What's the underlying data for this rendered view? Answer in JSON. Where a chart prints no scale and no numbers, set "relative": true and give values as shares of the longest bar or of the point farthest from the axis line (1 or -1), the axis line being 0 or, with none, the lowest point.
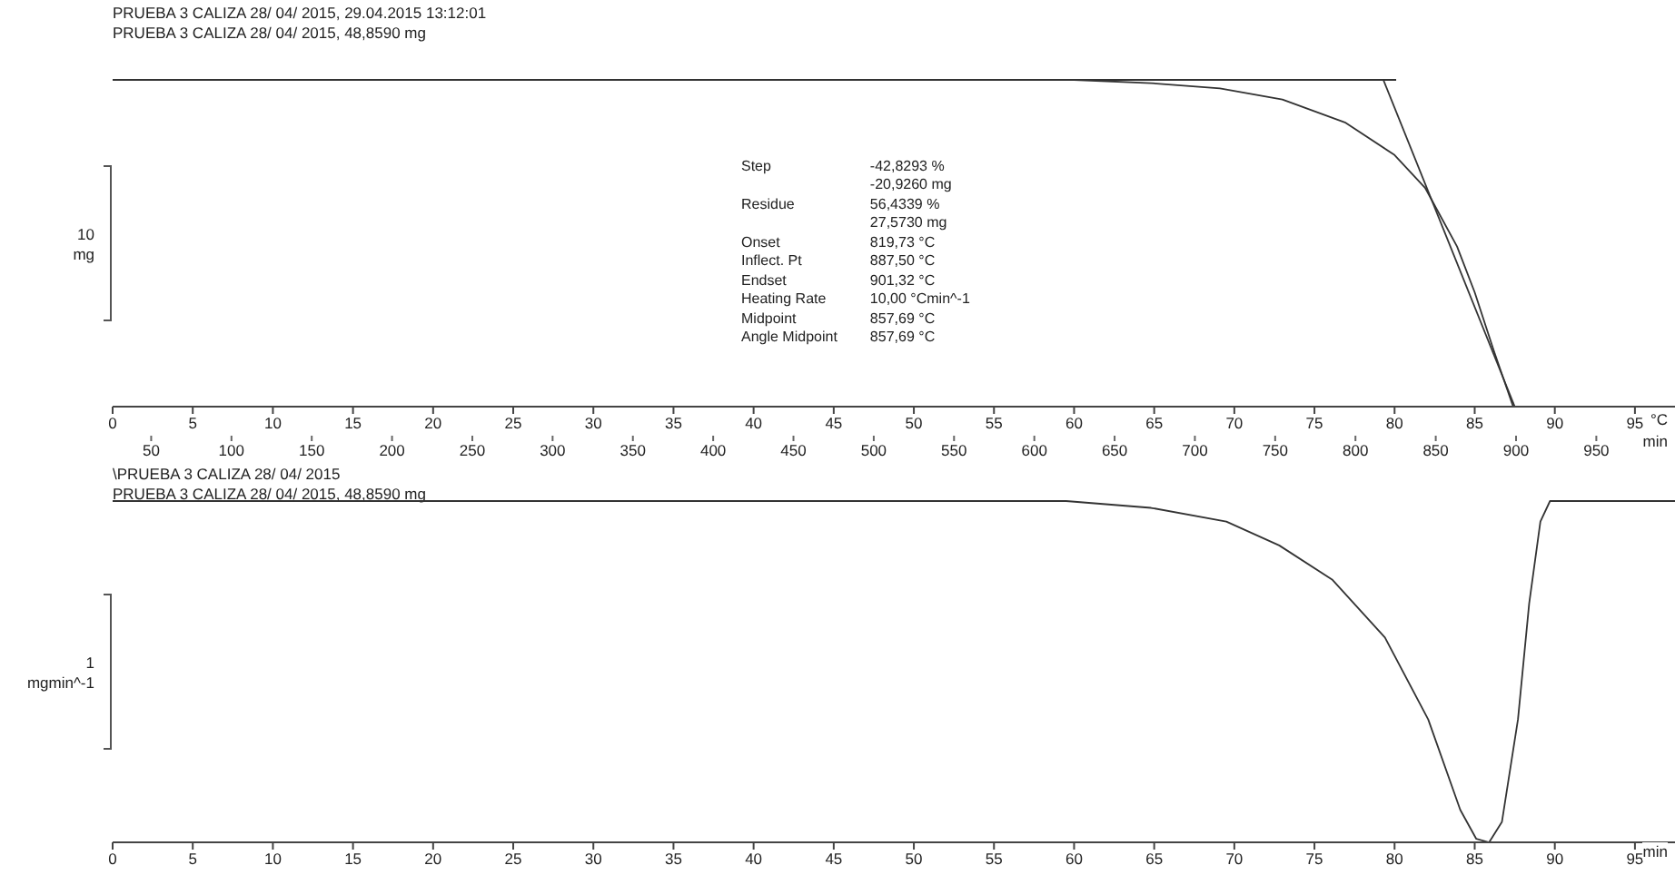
{
  "chart_data": [
    {
      "type": "line",
      "relative": true,
      "title": "PRUEBA 3 CALIZA 28/ 04/ 2015, 29.04.2015 13:12:01",
      "subtitle": "PRUEBA 3 CALIZA 28/ 04/ 2015, 48,8590 mg",
      "ylabel": "10 mg",
      "xlabel": "min",
      "x2label": "°C",
      "xlim": [
        0,
        97.5
      ],
      "xticks": [
        0,
        5,
        10,
        15,
        20,
        25,
        30,
        35,
        40,
        45,
        50,
        55,
        60,
        65,
        70,
        75,
        80,
        85,
        90,
        95
      ],
      "x2lim": [
        26,
        999
      ],
      "x2ticks": [
        50,
        100,
        150,
        200,
        250,
        300,
        350,
        400,
        450,
        500,
        550,
        600,
        650,
        700,
        750,
        800,
        850,
        900,
        950
      ],
      "annotations": [
        "Step\t-42,8293 %",
        "\t-20,9260 mg",
        "Residue\t56,4339 %",
        "\t27,5730 mg",
        "Onset\t819,73 °C",
        "Inflect. Pt\t887,50 °C",
        "Endset\t901,32 °C",
        "Heating Rate\t10,00 °Cmin^-1",
        "Midpoint\t857,69 °C",
        "Angle Midpoint\t857,69 °C"
      ],
      "series": [
        {
          "color": "#333333",
          "x": [
            0,
            10,
            20,
            30,
            40,
            50,
            60,
            64.8,
            69.1,
            73.0,
            76.9,
            80.0,
            81.9,
            83.9,
            85.0,
            86.2,
            87.4,
            90,
            97.5
          ],
          "values": [
            1,
            1,
            1,
            1,
            1,
            1,
            1,
            0.99,
            0.974,
            0.94,
            0.87,
            0.77,
            0.67,
            0.49,
            0.35,
            0.17,
            0,
            0,
            0
          ]
        },
        {
          "color": "#333333",
          "x": [
            55.8,
            80.1
          ],
          "values": [
            1,
            1
          ]
        },
        {
          "color": "#333333",
          "x": [
            79.3,
            87.5
          ],
          "values": [
            1,
            0
          ]
        }
      ]
    },
    {
      "type": "line",
      "relative": true,
      "title": "\\PRUEBA 3 CALIZA 28/ 04/ 2015",
      "subtitle": "PRUEBA 3 CALIZA 28/ 04/ 2015, 48,8590 mg",
      "ylabel": "1 mgmin^-1",
      "xlabel": "min",
      "xlim": [
        0,
        97.5
      ],
      "xticks": [
        0,
        5,
        10,
        15,
        20,
        25,
        30,
        35,
        40,
        45,
        50,
        55,
        60,
        65,
        70,
        75,
        80,
        85,
        90,
        95
      ],
      "series": [
        {
          "color": "#333333",
          "x": [
            0,
            10,
            20,
            30,
            40,
            50,
            59.5,
            64.8,
            69.5,
            72.8,
            76.1,
            79.4,
            82.1,
            84.1,
            85.1,
            85.9,
            86.7,
            87.7,
            88.4,
            89.1,
            89.7,
            97.5
          ],
          "values": [
            1,
            1,
            1,
            1,
            1,
            1,
            1,
            0.98,
            0.94,
            0.87,
            0.77,
            0.6,
            0.36,
            0.095,
            0.01,
            0,
            0.06,
            0.36,
            0.7,
            0.94,
            1,
            1
          ]
        }
      ]
    }
  ]
}
